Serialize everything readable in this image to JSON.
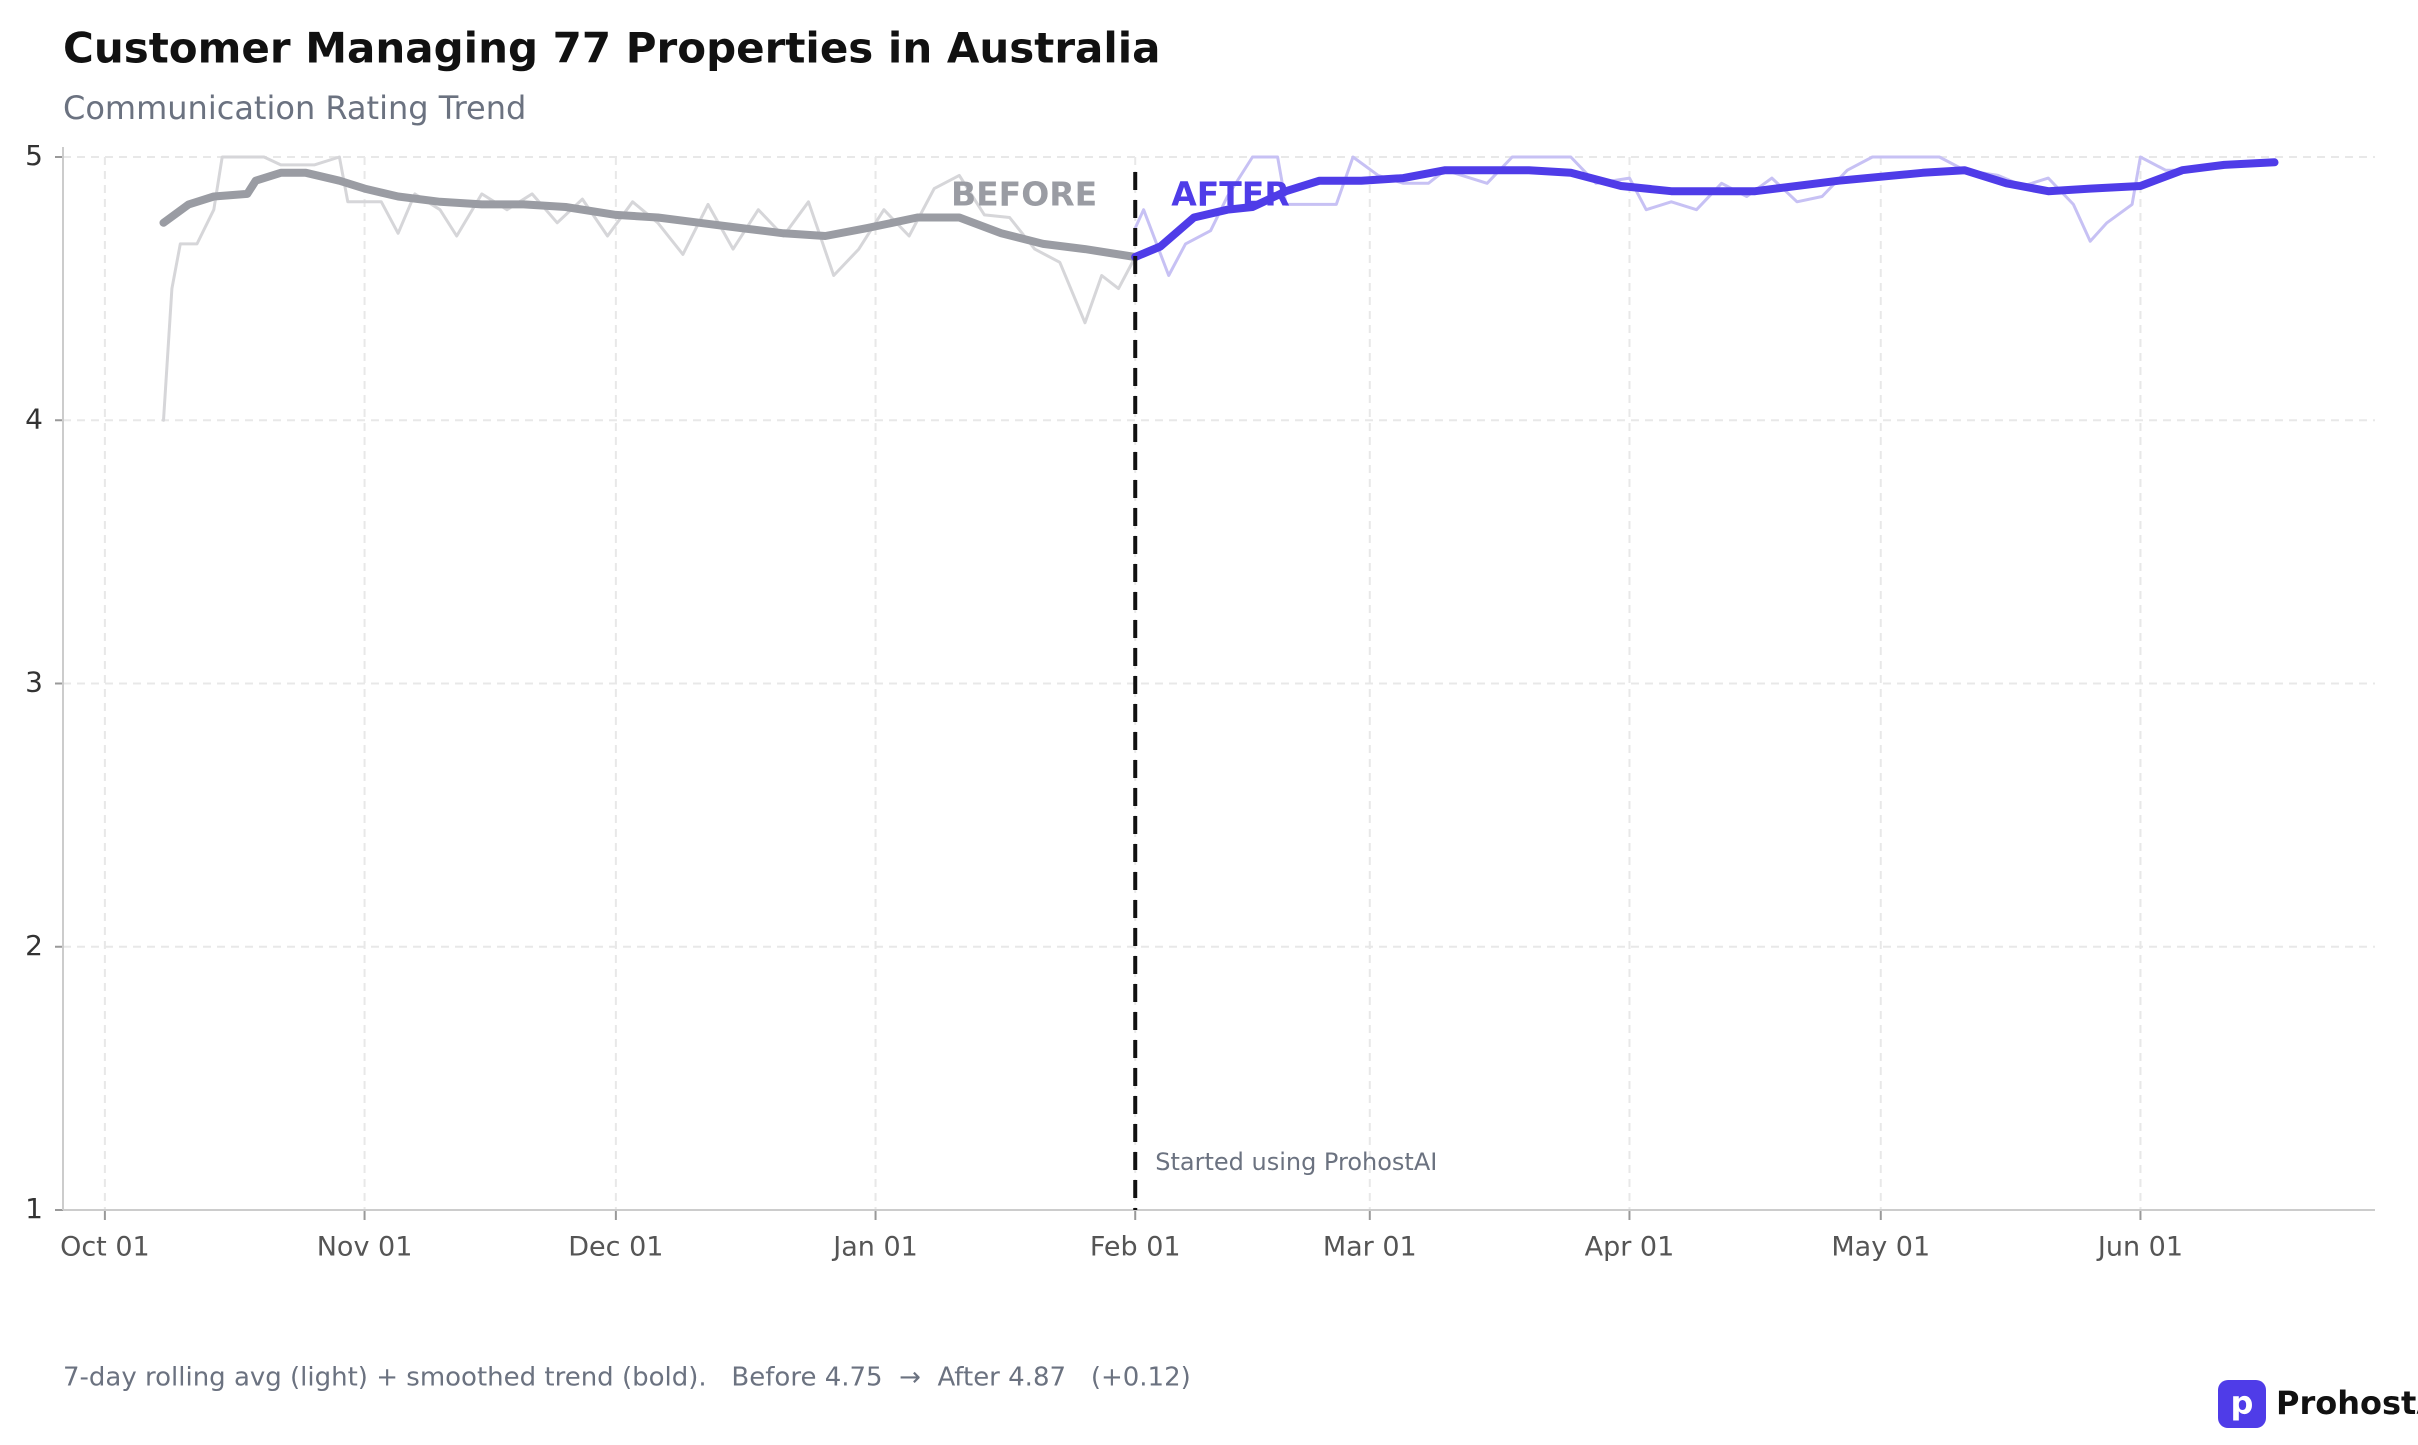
{
  "chart_data": {
    "type": "line",
    "title": "Customer Managing 77 Properties in Australia",
    "subtitle": "Communication Rating Trend",
    "xlim": [
      "Sep 26",
      "Jun 29"
    ],
    "xticks": [
      "Oct 01",
      "Nov 01",
      "Dec 01",
      "Jan 01",
      "Feb 01",
      "Mar 01",
      "Apr 01",
      "May 01",
      "Jun 01"
    ],
    "ylim": [
      1,
      5
    ],
    "yticks": [
      1,
      2,
      3,
      4,
      5
    ],
    "grid": true,
    "series": [
      {
        "color": "#d6d6d9",
        "width": 3,
        "x": [
          "Oct 08",
          "Oct 09",
          "Oct 10",
          "Oct 12",
          "Oct 14",
          "Oct 15",
          "Oct 20",
          "Oct 22",
          "Oct 26",
          "Oct 29",
          "Oct 30",
          "Nov 03",
          "Nov 05",
          "Nov 07",
          "Nov 10",
          "Nov 12",
          "Nov 15",
          "Nov 18",
          "Nov 21",
          "Nov 24",
          "Nov 27",
          "Nov 30",
          "Dec 03",
          "Dec 06",
          "Dec 09",
          "Dec 12",
          "Dec 15",
          "Dec 18",
          "Dec 21",
          "Dec 24",
          "Dec 27",
          "Dec 30",
          "Jan 02",
          "Jan 05",
          "Jan 08",
          "Jan 11",
          "Jan 14",
          "Jan 17",
          "Jan 20",
          "Jan 23",
          "Jan 26",
          "Jan 28",
          "Jan 30",
          "Feb 01"
        ],
        "values": [
          4.0,
          4.5,
          4.67,
          4.67,
          4.8,
          5.0,
          5.0,
          4.97,
          4.97,
          5.0,
          4.83,
          4.83,
          4.71,
          4.86,
          4.8,
          4.7,
          4.86,
          4.8,
          4.86,
          4.75,
          4.84,
          4.7,
          4.83,
          4.75,
          4.63,
          4.82,
          4.65,
          4.8,
          4.7,
          4.83,
          4.55,
          4.65,
          4.8,
          4.7,
          4.88,
          4.93,
          4.78,
          4.77,
          4.65,
          4.6,
          4.37,
          4.55,
          4.5,
          4.62
        ]
      },
      {
        "color": "#c7c1f4",
        "width": 3,
        "x": [
          "Feb 01",
          "Feb 02",
          "Feb 05",
          "Feb 07",
          "Feb 10",
          "Feb 12",
          "Feb 15",
          "Feb 18",
          "Feb 19",
          "Feb 25",
          "Feb 27",
          "Mar 02",
          "Mar 05",
          "Mar 08",
          "Mar 10",
          "Mar 15",
          "Mar 18",
          "Mar 25",
          "Mar 28",
          "Apr 01",
          "Apr 03",
          "Apr 06",
          "Apr 09",
          "Apr 12",
          "Apr 15",
          "Apr 18",
          "Apr 21",
          "Apr 24",
          "Apr 27",
          "Apr 30",
          "May 08",
          "May 11",
          "May 15",
          "May 18",
          "May 21",
          "May 24",
          "May 26",
          "May 28",
          "May 31",
          "Jun 01",
          "Jun 04",
          "Jun 08"
        ],
        "values": [
          4.73,
          4.8,
          4.55,
          4.67,
          4.72,
          4.85,
          5.0,
          5.0,
          4.82,
          4.82,
          5.0,
          4.93,
          4.9,
          4.9,
          4.95,
          4.9,
          5.0,
          5.0,
          4.9,
          4.92,
          4.8,
          4.83,
          4.8,
          4.9,
          4.85,
          4.92,
          4.83,
          4.85,
          4.95,
          5.0,
          5.0,
          4.95,
          4.93,
          4.89,
          4.92,
          4.82,
          4.68,
          4.75,
          4.82,
          5.0,
          4.95,
          4.95
        ]
      },
      {
        "color": "#9a9ca3",
        "width": 8,
        "x": [
          "Oct 08",
          "Oct 11",
          "Oct 14",
          "Oct 18",
          "Oct 19",
          "Oct 22",
          "Oct 25",
          "Oct 29",
          "Nov 01",
          "Nov 05",
          "Nov 10",
          "Nov 15",
          "Nov 20",
          "Nov 25",
          "Dec 01",
          "Dec 06",
          "Dec 11",
          "Dec 16",
          "Dec 21",
          "Dec 26",
          "Dec 31",
          "Jan 06",
          "Jan 11",
          "Jan 16",
          "Jan 21",
          "Jan 26",
          "Feb 01"
        ],
        "values": [
          4.75,
          4.82,
          4.85,
          4.86,
          4.91,
          4.94,
          4.94,
          4.91,
          4.88,
          4.85,
          4.83,
          4.82,
          4.82,
          4.81,
          4.78,
          4.77,
          4.75,
          4.73,
          4.71,
          4.7,
          4.73,
          4.77,
          4.77,
          4.71,
          4.67,
          4.65,
          4.62
        ]
      },
      {
        "color": "#4f3ce8",
        "width": 8,
        "x": [
          "Feb 01",
          "Feb 04",
          "Feb 08",
          "Feb 12",
          "Feb 15",
          "Feb 19",
          "Feb 23",
          "Feb 28",
          "Mar 05",
          "Mar 10",
          "Mar 20",
          "Mar 25",
          "Mar 31",
          "Apr 06",
          "Apr 16",
          "Apr 26",
          "May 06",
          "May 11",
          "May 16",
          "May 21",
          "May 26",
          "Jun 01",
          "Jun 06",
          "Jun 11",
          "Jun 17"
        ],
        "values": [
          4.62,
          4.66,
          4.77,
          4.8,
          4.81,
          4.87,
          4.91,
          4.91,
          4.92,
          4.95,
          4.95,
          4.94,
          4.89,
          4.87,
          4.87,
          4.91,
          4.94,
          4.95,
          4.9,
          4.87,
          4.88,
          4.89,
          4.95,
          4.97,
          4.98
        ]
      }
    ],
    "event": {
      "x": "Feb 01",
      "label": "Started using ProhostAI"
    },
    "before_label": {
      "text": "BEFORE",
      "color": "#9a9ca3"
    },
    "after_label": {
      "text": "AFTER",
      "color": "#4f3ce8"
    },
    "footnote": "7-day rolling avg (light) + smoothed trend (bold).   Before 4.75  →  After 4.87   (+0.12)"
  },
  "brand": {
    "icon": "p",
    "name": "ProhostAI"
  }
}
